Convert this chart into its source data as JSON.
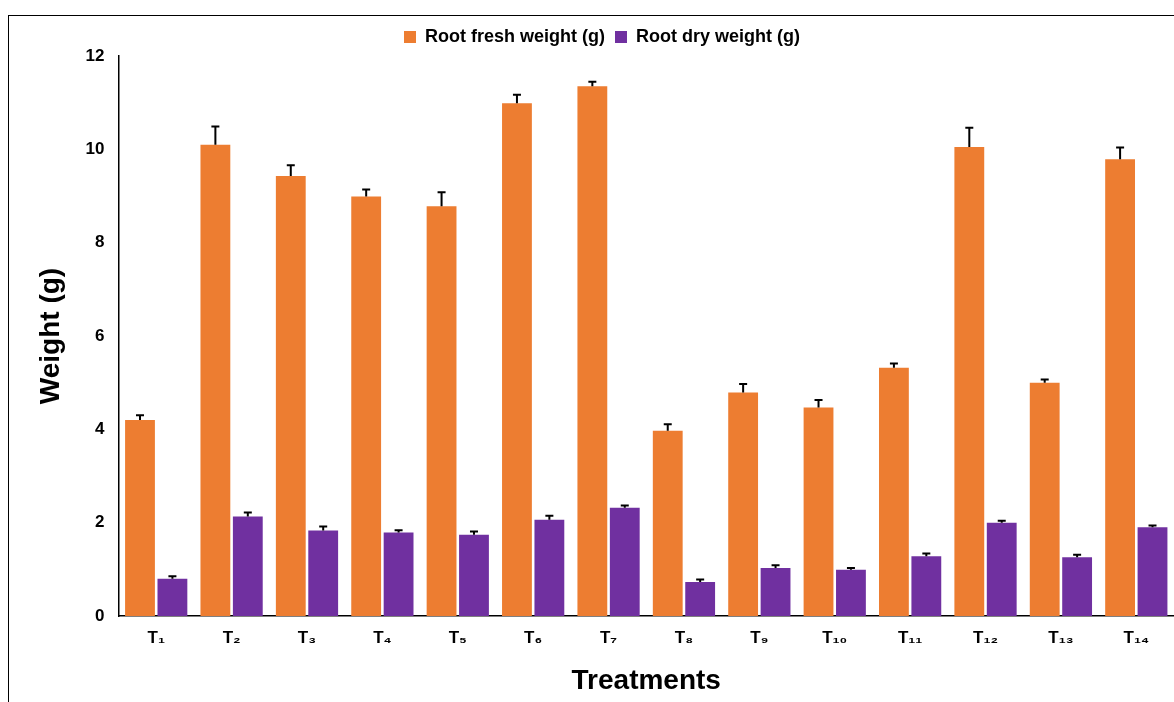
{
  "chart_data": {
    "type": "bar",
    "xlabel": "Treatments",
    "ylabel": "Weight (g)",
    "categories": [
      "T₁",
      "T₂",
      "T₃",
      "T₄",
      "T₅",
      "T₆",
      "T₇",
      "T₈",
      "T₉",
      "T₁₀",
      "T₁₁",
      "T₁₂",
      "T₁₃",
      "T₁₄"
    ],
    "series": [
      {
        "name": "Root fresh weight (g)",
        "color": "#ed7d31",
        "values": [
          4.2,
          10.1,
          9.43,
          8.99,
          8.78,
          10.99,
          11.35,
          3.97,
          4.79,
          4.47,
          5.32,
          10.05,
          5.0,
          9.79
        ],
        "errors": [
          0.1,
          0.39,
          0.23,
          0.15,
          0.3,
          0.18,
          0.1,
          0.14,
          0.18,
          0.16,
          0.09,
          0.41,
          0.07,
          0.25
        ]
      },
      {
        "name": "Root dry weight (g)",
        "color": "#7030a0",
        "values": [
          0.8,
          2.13,
          1.83,
          1.79,
          1.74,
          2.06,
          2.32,
          0.73,
          1.03,
          0.99,
          1.28,
          2.0,
          1.26,
          1.9
        ],
        "errors": [
          0.05,
          0.09,
          0.09,
          0.05,
          0.07,
          0.09,
          0.05,
          0.05,
          0.06,
          0.04,
          0.06,
          0.04,
          0.05,
          0.04
        ]
      }
    ],
    "ylim": [
      0,
      12
    ],
    "yticks": [
      0,
      2,
      4,
      6,
      8,
      10,
      12
    ],
    "grid": false,
    "legend": "top"
  }
}
